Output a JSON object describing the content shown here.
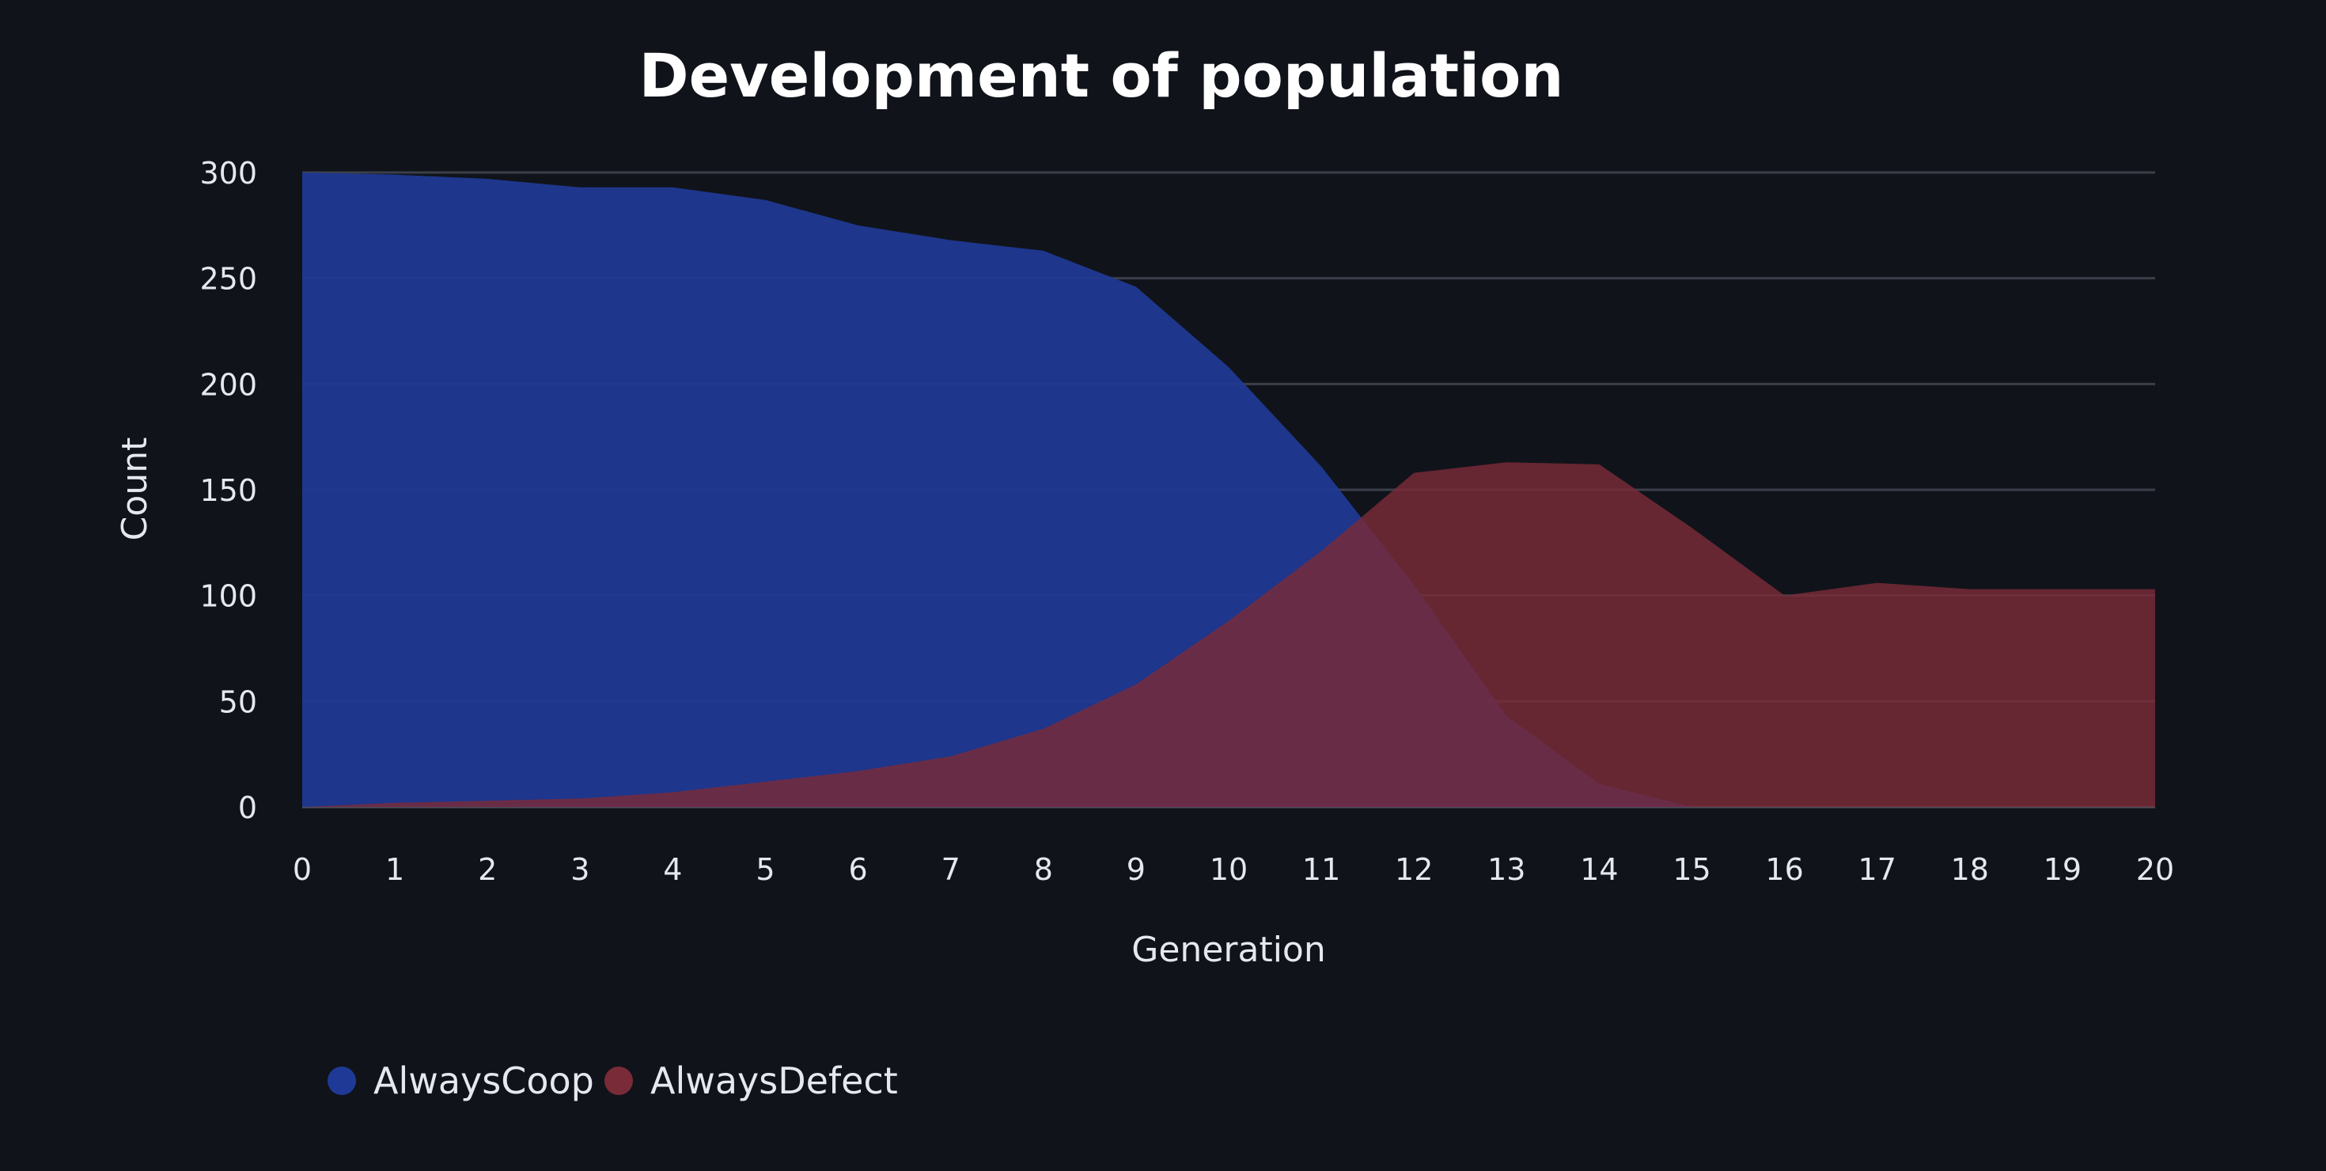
{
  "chart_data": {
    "type": "area",
    "title": "Development of population",
    "xlabel": "Generation",
    "ylabel": "Count",
    "x": [
      0,
      1,
      2,
      3,
      4,
      5,
      6,
      7,
      8,
      9,
      10,
      11,
      12,
      13,
      14,
      15,
      16,
      17,
      18,
      19,
      20
    ],
    "xlim": [
      0,
      20
    ],
    "ylim": [
      0,
      300
    ],
    "yticks": [
      0,
      50,
      100,
      150,
      200,
      250,
      300
    ],
    "grid": true,
    "legend_position": "bottom-left",
    "series": [
      {
        "name": "AlwaysCoop",
        "color": "#1f3a96",
        "values": [
          300,
          299,
          297,
          293,
          293,
          287,
          275,
          268,
          263,
          246,
          208,
          161,
          105,
          43,
          11,
          0,
          0,
          0,
          0,
          0,
          0
        ]
      },
      {
        "name": "AlwaysDefect",
        "color": "#7a2b38",
        "values": [
          0,
          2,
          3,
          4,
          7,
          12,
          17,
          24,
          37,
          58,
          88,
          121,
          158,
          163,
          162,
          132,
          100,
          106,
          103,
          103,
          103
        ]
      }
    ]
  }
}
